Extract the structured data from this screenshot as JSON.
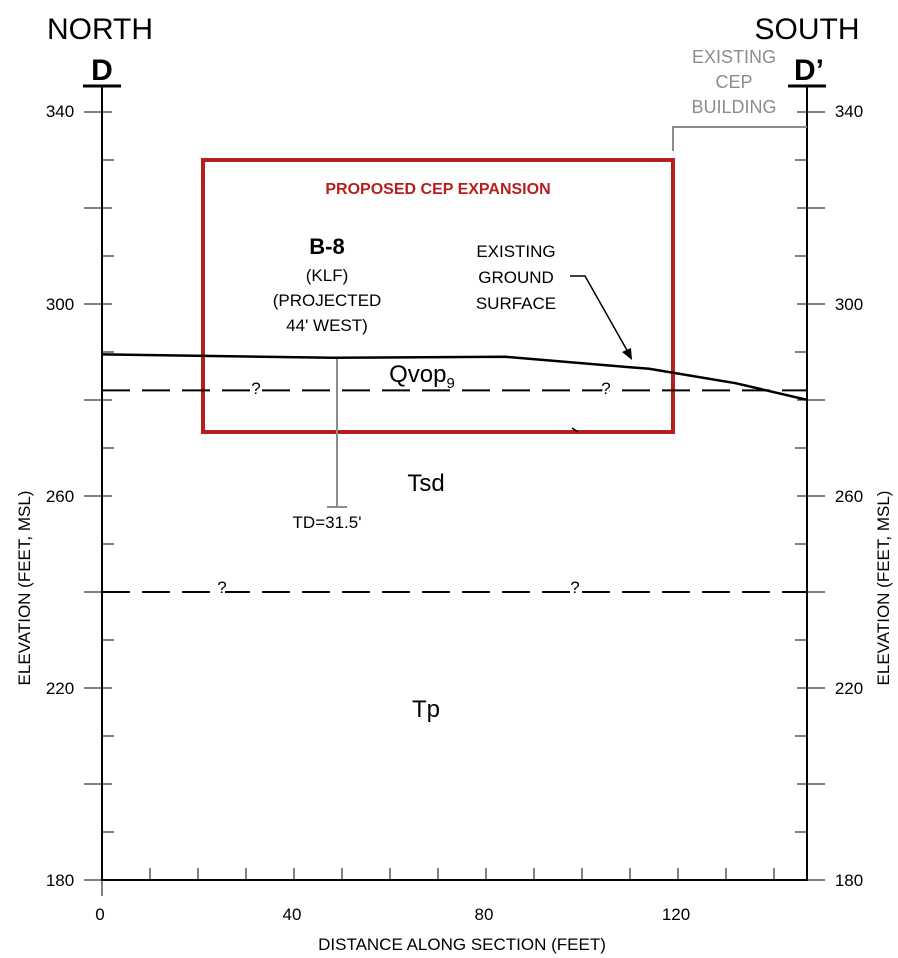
{
  "headers": {
    "north_label": "NORTH",
    "north_marker": "D",
    "south_label": "SOUTH",
    "south_marker": "D’"
  },
  "axes": {
    "y_ticks": [
      "340",
      "300",
      "260",
      "220",
      "180"
    ],
    "x_ticks": [
      "0",
      "40",
      "80",
      "120"
    ],
    "y_label_left": "ELEVATION (FEET, MSL)",
    "y_label_right": "ELEVATION (FEET, MSL)",
    "x_label": "DISTANCE ALONG SECTION (FEET)"
  },
  "annotations": {
    "existing_building": [
      "EXISTING",
      "CEP",
      "BUILDING"
    ],
    "expansion_title": "PROPOSED CEP EXPANSION",
    "boring_id": "B-8",
    "boring_notes": [
      "(KLF)",
      "(PROJECTED",
      "44' WEST)"
    ],
    "total_depth": "TD=31.5'",
    "ground_surface": [
      "EXISTING",
      "GROUND",
      "SURFACE"
    ],
    "query_mark": "?"
  },
  "units": {
    "qvop_base": "Qvop",
    "qvop_subscript": "9",
    "tsd": "Tsd",
    "tp": "Tp"
  },
  "colors": {
    "line": "#000000",
    "expansion_box": "#b5201e",
    "building": "#8c8c8c",
    "boring": "#8c8c8c"
  },
  "chart_data": {
    "type": "cross-section",
    "x_range": [
      0,
      147
    ],
    "y_range": [
      180,
      344
    ],
    "ground_surface": [
      [
        0,
        289.5
      ],
      [
        48,
        288.8
      ],
      [
        84,
        289
      ],
      [
        114,
        286.5
      ],
      [
        132,
        283.5
      ],
      [
        147,
        280
      ]
    ],
    "contacts": [
      {
        "between": [
          "Qvop9",
          "Tsd"
        ],
        "elevation": 282
      },
      {
        "between": [
          "Tsd",
          "Tp"
        ],
        "elevation": 240
      }
    ],
    "borings": [
      {
        "id": "B-8",
        "x": 49,
        "top": 288.8,
        "total_depth_ft": 31.5
      }
    ],
    "proposed_expansion": {
      "x": [
        21,
        119
      ],
      "y": [
        273,
        331
      ]
    },
    "existing_building": {
      "x_from": 119,
      "base": 337
    }
  }
}
